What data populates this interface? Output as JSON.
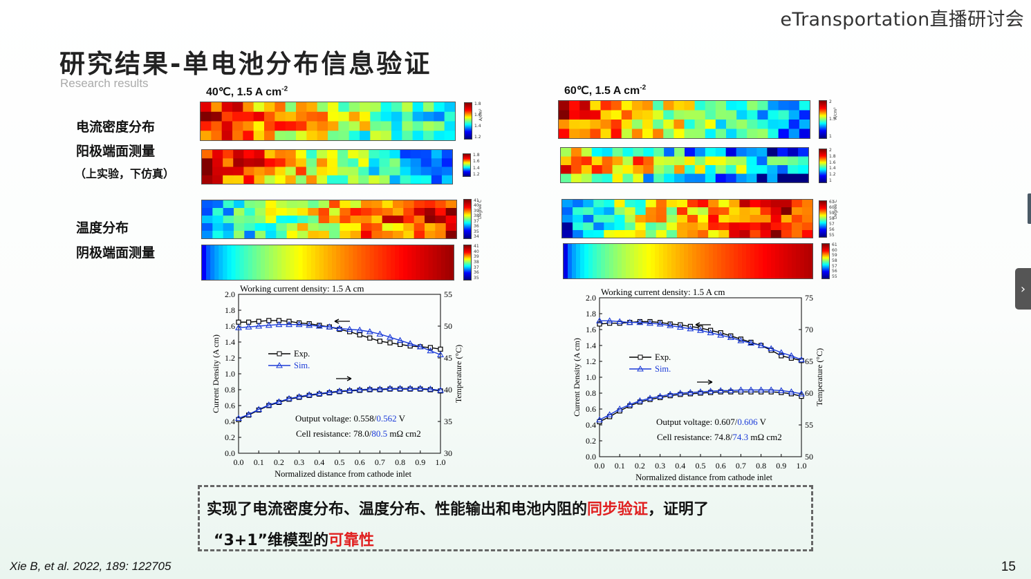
{
  "header": {
    "brand": "eTransportation直播研讨会"
  },
  "slide": {
    "title": "研究结果-单电池分布信息验证",
    "subtitle": "Research results",
    "labels": {
      "current_density": "电流密度分布",
      "anode_measure": "阳极端面测量",
      "exp_sim": "（上实验，下仿真）",
      "temperature": "温度分布",
      "cathode_measure": "阴极端面测量"
    },
    "panels": [
      {
        "cond_main": "40℃, 1.5 A cm",
        "cond_sup": "-2",
        "cbar_cd1": [
          "1.8",
          "1.6",
          "1.4",
          "1.2"
        ],
        "cbar_cd1_unit": "A/cm²",
        "cbar_cd2": [
          "1.8",
          "1.6",
          "1.4",
          "1.2"
        ],
        "cbar_t1": [
          "41",
          "40",
          "39",
          "38",
          "37",
          "36",
          "35",
          "34"
        ],
        "cbar_t1_unit": "Degree C",
        "cbar_t2": [
          "41",
          "40",
          "39",
          "38",
          "37",
          "36",
          "35"
        ]
      },
      {
        "cond_main": "60℃, 1.5 A cm",
        "cond_sup": "-2",
        "cbar_cd1": [
          "2",
          "1.5",
          "1"
        ],
        "cbar_cd1_unit": "A/cm²",
        "cbar_cd2": [
          "2",
          "1.8",
          "1.6",
          "1.4",
          "1.2",
          "1"
        ],
        "cbar_t1": [
          "61",
          "60",
          "59",
          "58",
          "57",
          "56",
          "55"
        ],
        "cbar_t1_unit": "Degree C",
        "cbar_t2": [
          "61",
          "60",
          "59",
          "58",
          "57",
          "56",
          "55"
        ]
      }
    ],
    "summary": {
      "line1_a": "实现了电流密度分布、温度分布、性能输出和电池内阻的",
      "line1_red": "同步验证",
      "line1_b": "，证明了",
      "line2_a": "“3+1”维模型的",
      "line2_red": "可靠性"
    },
    "citation": "Xie B, et al. 2022, 189: 122705",
    "page_number": "15"
  },
  "chart_data": [
    {
      "type": "line",
      "title": "Working current density: 1.5 A cm-2",
      "xlabel": "Normalized distance from cathode inlet",
      "ylabel": "Current Density (A cm-2)",
      "y2label": "Temperature (°C)",
      "xlim": [
        0,
        1
      ],
      "ylim": [
        0,
        2
      ],
      "y2lim": [
        30,
        55
      ],
      "xticks": [
        "0.0",
        "0.1",
        "0.2",
        "0.3",
        "0.4",
        "0.5",
        "0.6",
        "0.7",
        "0.8",
        "0.9",
        "1.0"
      ],
      "yticks": [
        "0.0",
        "0.2",
        "0.4",
        "0.6",
        "0.8",
        "1.0",
        "1.2",
        "1.4",
        "1.6",
        "1.8",
        "2.0"
      ],
      "y2ticks": [
        "30",
        "35",
        "40",
        "45",
        "50",
        "55"
      ],
      "legend": [
        "Exp.",
        "Sim."
      ],
      "ann_voltage_a": "Output voltage: 0.558/",
      "ann_voltage_b": "0.562",
      "ann_voltage_c": " V",
      "ann_res_a": "Cell resistance: 78.0/",
      "ann_res_b": "80.5",
      "ann_res_c": " mΩ cm2",
      "series": [
        {
          "name": "Exp.",
          "axis": "left",
          "x": [
            0,
            0.05,
            0.1,
            0.15,
            0.2,
            0.25,
            0.3,
            0.35,
            0.4,
            0.45,
            0.5,
            0.55,
            0.6,
            0.65,
            0.7,
            0.75,
            0.8,
            0.85,
            0.9,
            0.95,
            1.0
          ],
          "values": [
            1.65,
            1.65,
            1.66,
            1.67,
            1.67,
            1.66,
            1.64,
            1.63,
            1.61,
            1.59,
            1.56,
            1.53,
            1.49,
            1.45,
            1.41,
            1.39,
            1.37,
            1.35,
            1.34,
            1.33,
            1.31
          ]
        },
        {
          "name": "Sim.",
          "axis": "left",
          "x": [
            0,
            0.05,
            0.1,
            0.15,
            0.2,
            0.25,
            0.3,
            0.35,
            0.4,
            0.45,
            0.5,
            0.55,
            0.6,
            0.65,
            0.7,
            0.75,
            0.8,
            0.85,
            0.9,
            0.95,
            1.0
          ],
          "values": [
            1.58,
            1.59,
            1.6,
            1.61,
            1.62,
            1.62,
            1.62,
            1.61,
            1.6,
            1.59,
            1.57,
            1.56,
            1.55,
            1.53,
            1.5,
            1.46,
            1.42,
            1.38,
            1.34,
            1.29,
            1.24
          ]
        },
        {
          "name": "Exp.",
          "axis": "right",
          "x": [
            0,
            0.05,
            0.1,
            0.15,
            0.2,
            0.25,
            0.3,
            0.35,
            0.4,
            0.45,
            0.5,
            0.55,
            0.6,
            0.65,
            0.7,
            0.75,
            0.8,
            0.85,
            0.9,
            0.95,
            1.0
          ],
          "values": [
            35.3,
            36.0,
            36.8,
            37.5,
            38.0,
            38.5,
            38.8,
            39.1,
            39.3,
            39.5,
            39.7,
            39.8,
            39.9,
            40.0,
            40.0,
            40.1,
            40.1,
            40.1,
            40.1,
            40.0,
            39.8
          ]
        },
        {
          "name": "Sim.",
          "axis": "right",
          "x": [
            0,
            0.05,
            0.1,
            0.15,
            0.2,
            0.25,
            0.3,
            0.35,
            0.4,
            0.45,
            0.5,
            0.55,
            0.6,
            0.65,
            0.7,
            0.75,
            0.8,
            0.85,
            0.9,
            0.95,
            1.0
          ],
          "values": [
            35.5,
            36.1,
            36.9,
            37.6,
            38.1,
            38.6,
            38.9,
            39.2,
            39.4,
            39.6,
            39.8,
            39.9,
            40.0,
            40.1,
            40.1,
            40.2,
            40.2,
            40.2,
            40.2,
            40.1,
            39.9
          ]
        }
      ]
    },
    {
      "type": "line",
      "title": "Working current density: 1.5 A cm-2",
      "xlabel": "Normalized distance from cathode inlet",
      "ylabel": "Current Density (A cm-2)",
      "y2label": "Temperature (°C)",
      "xlim": [
        0,
        1
      ],
      "ylim": [
        0,
        2
      ],
      "y2lim": [
        50,
        75
      ],
      "xticks": [
        "0.0",
        "0.1",
        "0.2",
        "0.3",
        "0.4",
        "0.5",
        "0.6",
        "0.7",
        "0.8",
        "0.9",
        "1.0"
      ],
      "yticks": [
        "0.0",
        "0.2",
        "0.4",
        "0.6",
        "0.8",
        "1.0",
        "1.2",
        "1.4",
        "1.6",
        "1.8",
        "2.0"
      ],
      "y2ticks": [
        "50",
        "55",
        "60",
        "65",
        "70",
        "75"
      ],
      "legend": [
        "Exp.",
        "Sim."
      ],
      "ann_voltage_a": "Output voltage: 0.607/",
      "ann_voltage_b": "0.606",
      "ann_voltage_c": " V",
      "ann_res_a": "Cell resistance: 74.8/",
      "ann_res_b": "74.3",
      "ann_res_c": " mΩ cm2",
      "series": [
        {
          "name": "Exp.",
          "axis": "left",
          "x": [
            0,
            0.05,
            0.1,
            0.15,
            0.2,
            0.25,
            0.3,
            0.35,
            0.4,
            0.45,
            0.5,
            0.55,
            0.6,
            0.65,
            0.7,
            0.75,
            0.8,
            0.85,
            0.9,
            0.95,
            1.0
          ],
          "values": [
            1.67,
            1.68,
            1.68,
            1.69,
            1.7,
            1.7,
            1.69,
            1.67,
            1.66,
            1.64,
            1.62,
            1.59,
            1.56,
            1.52,
            1.48,
            1.44,
            1.4,
            1.34,
            1.27,
            1.24,
            1.21
          ]
        },
        {
          "name": "Sim.",
          "axis": "left",
          "x": [
            0,
            0.05,
            0.1,
            0.15,
            0.2,
            0.25,
            0.3,
            0.35,
            0.4,
            0.45,
            0.5,
            0.55,
            0.6,
            0.65,
            0.7,
            0.75,
            0.8,
            0.85,
            0.9,
            0.95,
            1.0
          ],
          "values": [
            1.71,
            1.71,
            1.7,
            1.69,
            1.69,
            1.68,
            1.67,
            1.65,
            1.63,
            1.61,
            1.59,
            1.56,
            1.53,
            1.5,
            1.46,
            1.43,
            1.4,
            1.36,
            1.31,
            1.27,
            1.22
          ]
        },
        {
          "name": "Exp.",
          "axis": "right",
          "x": [
            0,
            0.05,
            0.1,
            0.15,
            0.2,
            0.25,
            0.3,
            0.35,
            0.4,
            0.45,
            0.5,
            0.55,
            0.6,
            0.65,
            0.7,
            0.75,
            0.8,
            0.85,
            0.9,
            0.95,
            1.0
          ],
          "values": [
            55.5,
            56.3,
            57.2,
            58.0,
            58.6,
            59.0,
            59.3,
            59.6,
            59.8,
            59.9,
            60.0,
            60.1,
            60.2,
            60.2,
            60.2,
            60.2,
            60.2,
            60.2,
            60.1,
            59.9,
            59.5
          ]
        },
        {
          "name": "Sim.",
          "axis": "right",
          "x": [
            0,
            0.05,
            0.1,
            0.15,
            0.2,
            0.25,
            0.3,
            0.35,
            0.4,
            0.45,
            0.5,
            0.55,
            0.6,
            0.65,
            0.7,
            0.75,
            0.8,
            0.85,
            0.9,
            0.95,
            1.0
          ],
          "values": [
            55.8,
            56.6,
            57.5,
            58.2,
            58.8,
            59.2,
            59.5,
            59.8,
            60.0,
            60.1,
            60.2,
            60.3,
            60.4,
            60.4,
            60.5,
            60.5,
            60.5,
            60.5,
            60.4,
            60.2,
            59.9
          ]
        }
      ]
    }
  ]
}
